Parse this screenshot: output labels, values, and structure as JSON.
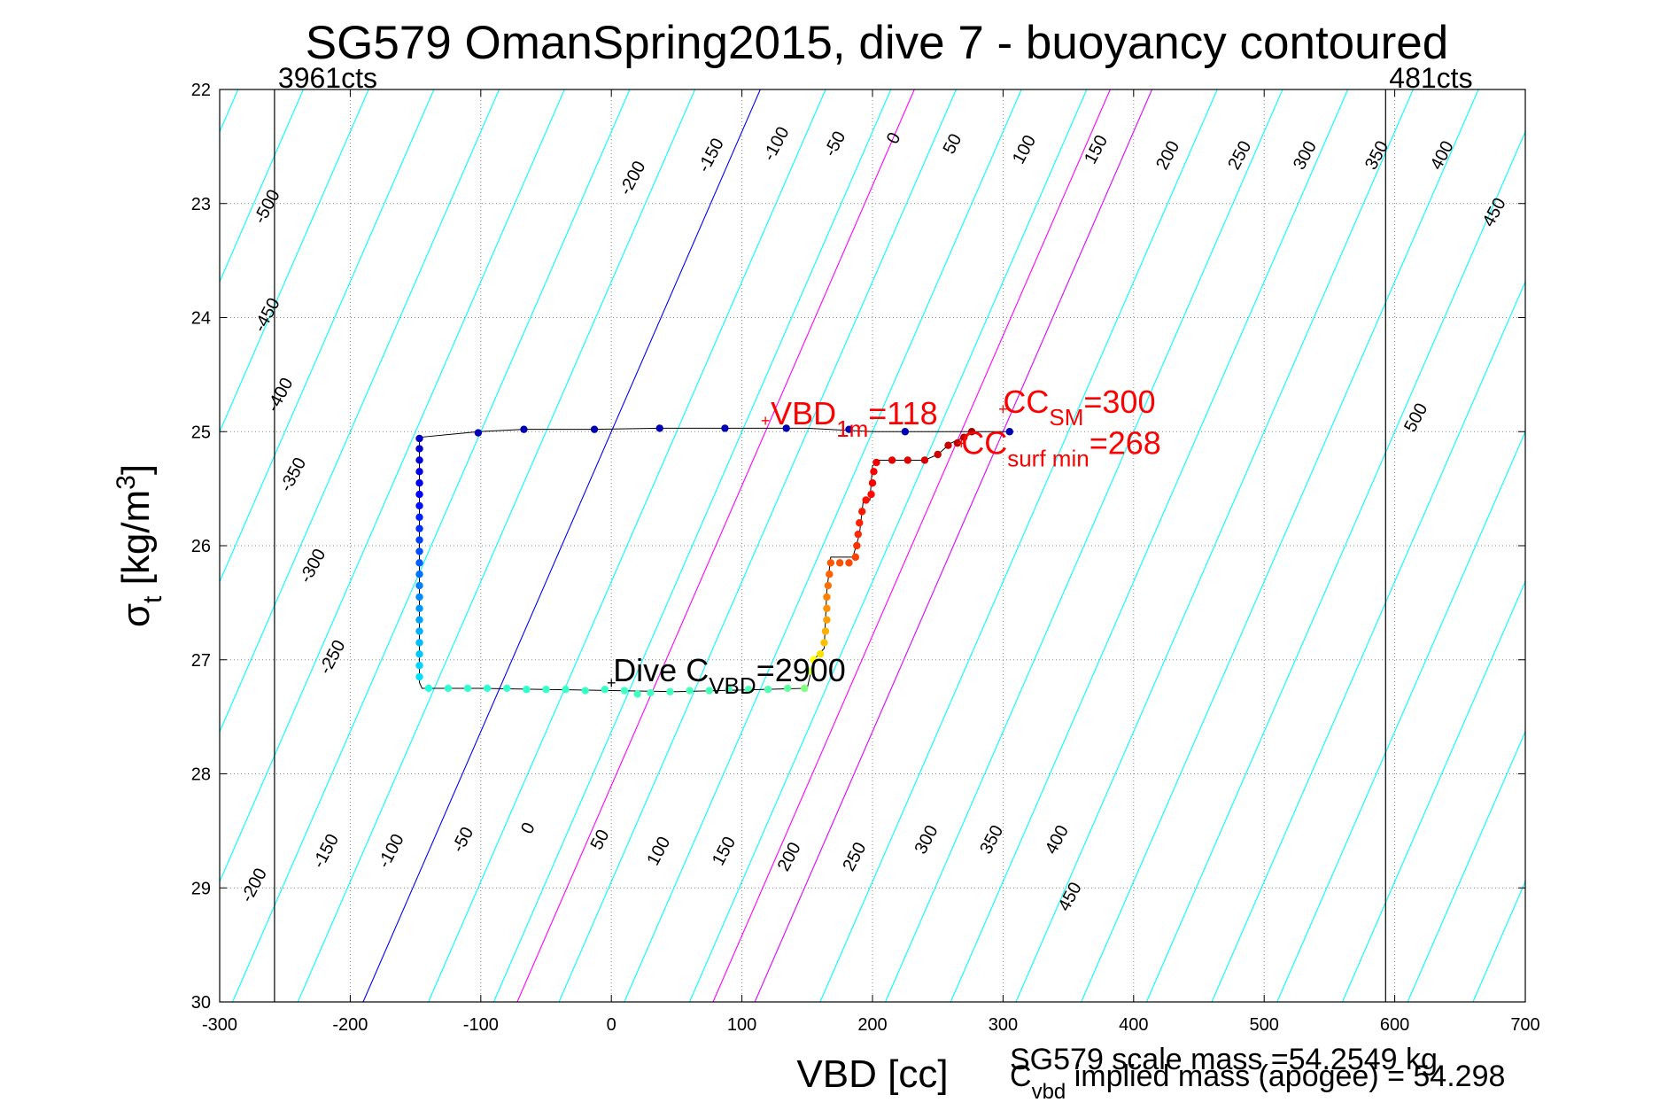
{
  "chart_data": {
    "type": "scatter",
    "title": "SG579 OmanSpring2015, dive 7 - buoyancy contoured",
    "xlabel": "VBD [cc]",
    "ylabel": {
      "main": "σ",
      "sub": "t",
      "rest": " [kg/m",
      "sup": "3",
      "close": "]"
    },
    "xlim": [
      -300,
      700
    ],
    "ylim": [
      22,
      30
    ],
    "y_reversed": true,
    "grid": true,
    "x_ticks": [
      -300,
      -200,
      -100,
      0,
      100,
      200,
      300,
      400,
      500,
      600,
      700
    ],
    "y_ticks": [
      22,
      23,
      24,
      25,
      26,
      27,
      28,
      29,
      30
    ],
    "contour_slope": 2.63,
    "contours_cyan": [
      -500,
      -450,
      -400,
      -350,
      -300,
      -250,
      -200,
      -150,
      -100,
      -50,
      50,
      100,
      150,
      200,
      250,
      300,
      350,
      400,
      450,
      500
    ],
    "contours_pink": [
      118,
      268,
      300
    ],
    "contour_blue": 0,
    "contour_labels_top": [
      {
        "text": "-500",
        "x": -260,
        "y": 23.05
      },
      {
        "text": "-450",
        "x": -260,
        "y": 24.0
      },
      {
        "text": "-400",
        "x": -250,
        "y": 24.7
      },
      {
        "text": "-350",
        "x": -240,
        "y": 25.4
      },
      {
        "text": "-300",
        "x": -225,
        "y": 26.2
      },
      {
        "text": "-250",
        "x": -210,
        "y": 27.0
      },
      {
        "text": "-200",
        "x": 20,
        "y": 22.8
      },
      {
        "text": "-150",
        "x": 80,
        "y": 22.6
      },
      {
        "text": "-100",
        "x": 130,
        "y": 22.5
      },
      {
        "text": "-50",
        "x": 175,
        "y": 22.5
      },
      {
        "text": "0",
        "x": 220,
        "y": 22.45
      },
      {
        "text": "50",
        "x": 265,
        "y": 22.5
      },
      {
        "text": "100",
        "x": 320,
        "y": 22.55
      },
      {
        "text": "150",
        "x": 375,
        "y": 22.55
      },
      {
        "text": "200",
        "x": 430,
        "y": 22.6
      },
      {
        "text": "250",
        "x": 485,
        "y": 22.6
      },
      {
        "text": "300",
        "x": 535,
        "y": 22.6
      },
      {
        "text": "350",
        "x": 590,
        "y": 22.6
      },
      {
        "text": "400",
        "x": 640,
        "y": 22.6
      },
      {
        "text": "450",
        "x": 680,
        "y": 23.1
      },
      {
        "text": "500",
        "x": 620,
        "y": 24.9
      }
    ],
    "contour_labels_bottom": [
      {
        "text": "-200",
        "x": -270,
        "y": 29.0
      },
      {
        "text": "-150",
        "x": -215,
        "y": 28.7
      },
      {
        "text": "-100",
        "x": -165,
        "y": 28.7
      },
      {
        "text": "-50",
        "x": -110,
        "y": 28.6
      },
      {
        "text": "0",
        "x": -60,
        "y": 28.5
      },
      {
        "text": "50",
        "x": -5,
        "y": 28.6
      },
      {
        "text": "100",
        "x": 40,
        "y": 28.7
      },
      {
        "text": "150",
        "x": 90,
        "y": 28.7
      },
      {
        "text": "200",
        "x": 140,
        "y": 28.75
      },
      {
        "text": "250",
        "x": 190,
        "y": 28.75
      },
      {
        "text": "300",
        "x": 245,
        "y": 28.6
      },
      {
        "text": "350",
        "x": 295,
        "y": 28.6
      },
      {
        "text": "400",
        "x": 345,
        "y": 28.6
      },
      {
        "text": "450",
        "x": 355,
        "y": 29.1
      }
    ],
    "limit_lines": [
      {
        "x": -258,
        "label": "3961cts"
      },
      {
        "x": 593,
        "label": "481cts"
      }
    ],
    "annotations": {
      "vbd_1m": {
        "main": "VBD",
        "sub": "1m",
        "value": "=118",
        "x": 118,
        "y": 24.95
      },
      "cc_sm": {
        "main": "CC",
        "sub": "SM",
        "value": "=300",
        "x": 300,
        "y": 24.85
      },
      "cc_surf_min": {
        "main": "CC",
        "sub": "surf min",
        "value": "=268",
        "x": 268,
        "y": 25.15
      },
      "dive_c_vbd": {
        "main": "Dive C",
        "sub": "VBD",
        "value": "=2900",
        "x": 0,
        "y": 27.25
      }
    },
    "footer": {
      "scale_mass": "SG579 scale mass =54.2549 kg",
      "implied_main": "C",
      "implied_sub": "vbd",
      "implied_rest": " implied mass (apogee) = 54.298"
    },
    "dive_path_line": [
      [
        -147,
        25.05
      ],
      [
        -147,
        27.2
      ],
      [
        -145,
        27.25
      ],
      [
        -100,
        27.25
      ],
      [
        0,
        27.27
      ],
      [
        50,
        27.28
      ],
      [
        150,
        27.25
      ],
      [
        155,
        27.0
      ],
      [
        163,
        26.9
      ],
      [
        165,
        26.4
      ],
      [
        168,
        26.1
      ],
      [
        185,
        26.1
      ],
      [
        190,
        25.9
      ],
      [
        193,
        25.6
      ],
      [
        198,
        25.6
      ],
      [
        200,
        25.3
      ],
      [
        205,
        25.25
      ],
      [
        240,
        25.25
      ],
      [
        250,
        25.2
      ],
      [
        260,
        25.1
      ],
      [
        270,
        25.05
      ],
      [
        275,
        25.0
      ],
      [
        305,
        25.0
      ],
      [
        250,
        25.0
      ],
      [
        200,
        25.0
      ],
      [
        150,
        24.97
      ],
      [
        87,
        24.97
      ],
      [
        37,
        24.97
      ],
      [
        -13,
        24.98
      ],
      [
        -67,
        24.98
      ],
      [
        -102,
        25.0
      ],
      [
        -147,
        25.05
      ]
    ],
    "dive_points": [
      {
        "x": -147,
        "y": 25.06,
        "c": "#0000c8"
      },
      {
        "x": -147,
        "y": 25.15,
        "c": "#0000d2"
      },
      {
        "x": -147,
        "y": 25.25,
        "c": "#0000dc"
      },
      {
        "x": -147,
        "y": 25.35,
        "c": "#0000e6"
      },
      {
        "x": -147,
        "y": 25.45,
        "c": "#0000f0"
      },
      {
        "x": -147,
        "y": 25.55,
        "c": "#0000ff"
      },
      {
        "x": -147,
        "y": 25.65,
        "c": "#0010ff"
      },
      {
        "x": -147,
        "y": 25.75,
        "c": "#0020ff"
      },
      {
        "x": -147,
        "y": 25.85,
        "c": "#0030ff"
      },
      {
        "x": -147,
        "y": 25.95,
        "c": "#0040ff"
      },
      {
        "x": -147,
        "y": 26.05,
        "c": "#0050ff"
      },
      {
        "x": -147,
        "y": 26.15,
        "c": "#0060ff"
      },
      {
        "x": -147,
        "y": 26.25,
        "c": "#0070ff"
      },
      {
        "x": -147,
        "y": 26.35,
        "c": "#0080ff"
      },
      {
        "x": -147,
        "y": 26.45,
        "c": "#008cff"
      },
      {
        "x": -147,
        "y": 26.55,
        "c": "#0098ff"
      },
      {
        "x": -147,
        "y": 26.65,
        "c": "#00a4ff"
      },
      {
        "x": -147,
        "y": 26.75,
        "c": "#00b0ff"
      },
      {
        "x": -147,
        "y": 26.85,
        "c": "#00bcff"
      },
      {
        "x": -147,
        "y": 26.95,
        "c": "#00c8ff"
      },
      {
        "x": -147,
        "y": 27.05,
        "c": "#00d4ff"
      },
      {
        "x": -147,
        "y": 27.15,
        "c": "#00e0ff"
      },
      {
        "x": -140,
        "y": 27.25,
        "c": "#20ffdf"
      },
      {
        "x": -125,
        "y": 27.25,
        "c": "#30ffcf"
      },
      {
        "x": -110,
        "y": 27.25,
        "c": "#30ffcf"
      },
      {
        "x": -95,
        "y": 27.25,
        "c": "#30ffcf"
      },
      {
        "x": -80,
        "y": 27.25,
        "c": "#30ffcf"
      },
      {
        "x": -65,
        "y": 27.26,
        "c": "#30ffcf"
      },
      {
        "x": -50,
        "y": 27.26,
        "c": "#38ffc7"
      },
      {
        "x": -35,
        "y": 27.26,
        "c": "#38ffc7"
      },
      {
        "x": -20,
        "y": 27.27,
        "c": "#38ffc7"
      },
      {
        "x": -5,
        "y": 27.26,
        "c": "#38ffc7"
      },
      {
        "x": 10,
        "y": 27.27,
        "c": "#40ffbf"
      },
      {
        "x": 20,
        "y": 27.3,
        "c": "#40ffbf"
      },
      {
        "x": 30,
        "y": 27.29,
        "c": "#40ffbf"
      },
      {
        "x": 45,
        "y": 27.28,
        "c": "#40ffbf"
      },
      {
        "x": 60,
        "y": 27.27,
        "c": "#48ffb7"
      },
      {
        "x": 75,
        "y": 27.27,
        "c": "#48ffb7"
      },
      {
        "x": 90,
        "y": 27.26,
        "c": "#48ffb7"
      },
      {
        "x": 105,
        "y": 27.26,
        "c": "#50ffaf"
      },
      {
        "x": 120,
        "y": 27.26,
        "c": "#50ffaf"
      },
      {
        "x": 135,
        "y": 27.25,
        "c": "#60ff9f"
      },
      {
        "x": 148,
        "y": 27.25,
        "c": "#80ff7f"
      },
      {
        "x": 152,
        "y": 27.1,
        "c": "#c0ff3f"
      },
      {
        "x": 155,
        "y": 27.0,
        "c": "#ffff00"
      },
      {
        "x": 160,
        "y": 26.95,
        "c": "#ffdf00"
      },
      {
        "x": 163,
        "y": 26.85,
        "c": "#ffbf00"
      },
      {
        "x": 164,
        "y": 26.75,
        "c": "#ffaf00"
      },
      {
        "x": 165,
        "y": 26.65,
        "c": "#ffa000"
      },
      {
        "x": 165,
        "y": 26.55,
        "c": "#ff9000"
      },
      {
        "x": 165,
        "y": 26.45,
        "c": "#ff8000"
      },
      {
        "x": 166,
        "y": 26.35,
        "c": "#ff7000"
      },
      {
        "x": 167,
        "y": 26.25,
        "c": "#ff6000"
      },
      {
        "x": 168,
        "y": 26.15,
        "c": "#ff5a00"
      },
      {
        "x": 175,
        "y": 26.15,
        "c": "#ff5000"
      },
      {
        "x": 182,
        "y": 26.15,
        "c": "#ff4800"
      },
      {
        "x": 187,
        "y": 26.1,
        "c": "#ff4000"
      },
      {
        "x": 188,
        "y": 26.0,
        "c": "#ff3000"
      },
      {
        "x": 189,
        "y": 25.9,
        "c": "#ff2800"
      },
      {
        "x": 190,
        "y": 25.8,
        "c": "#ff2000"
      },
      {
        "x": 192,
        "y": 25.7,
        "c": "#ff1800"
      },
      {
        "x": 195,
        "y": 25.6,
        "c": "#ff1000"
      },
      {
        "x": 199,
        "y": 25.55,
        "c": "#ff0800"
      },
      {
        "x": 200,
        "y": 25.45,
        "c": "#ff0000"
      },
      {
        "x": 201,
        "y": 25.35,
        "c": "#f80000"
      },
      {
        "x": 203,
        "y": 25.27,
        "c": "#f00000"
      },
      {
        "x": 215,
        "y": 25.25,
        "c": "#e80000"
      },
      {
        "x": 227,
        "y": 25.25,
        "c": "#e00000"
      },
      {
        "x": 240,
        "y": 25.25,
        "c": "#d80000"
      },
      {
        "x": 250,
        "y": 25.2,
        "c": "#d00000"
      },
      {
        "x": 258,
        "y": 25.12,
        "c": "#c80000"
      },
      {
        "x": 265,
        "y": 25.1,
        "c": "#c00000"
      },
      {
        "x": 270,
        "y": 25.05,
        "c": "#b80000"
      },
      {
        "x": 276,
        "y": 25.0,
        "c": "#a00000"
      },
      {
        "x": 305,
        "y": 25.0,
        "c": "#0000b4"
      },
      {
        "x": 225,
        "y": 25.0,
        "c": "#0000b4"
      },
      {
        "x": 182,
        "y": 24.98,
        "c": "#0000b4"
      },
      {
        "x": 134,
        "y": 24.97,
        "c": "#0000b4"
      },
      {
        "x": 87,
        "y": 24.97,
        "c": "#0000b4"
      },
      {
        "x": 37,
        "y": 24.97,
        "c": "#0000b4"
      },
      {
        "x": -13,
        "y": 24.98,
        "c": "#0000b4"
      },
      {
        "x": -67,
        "y": 24.98,
        "c": "#0000b4"
      },
      {
        "x": -102,
        "y": 25.01,
        "c": "#0000b4"
      }
    ],
    "colors": {
      "contour": "#00ffff",
      "contour_zero": "#0000ff",
      "contour_special": "#ff00ff",
      "annotation": "#ff0000",
      "grid": "#888888"
    }
  }
}
